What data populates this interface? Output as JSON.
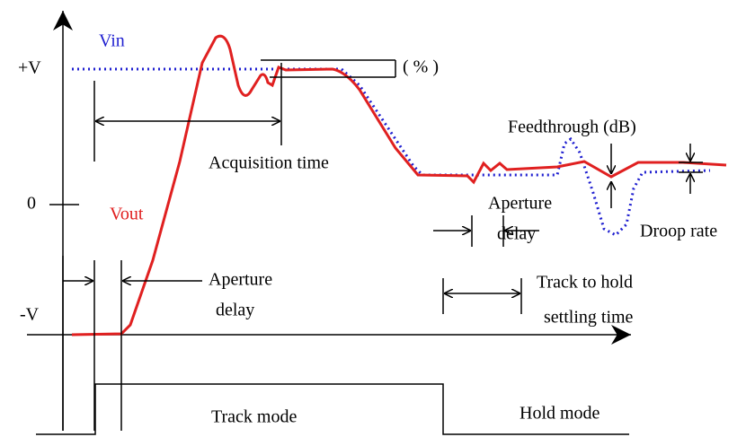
{
  "axis_labels": {
    "top": "+V",
    "zero": "0",
    "bottom": "-V"
  },
  "signals": {
    "input": "Vin",
    "output": "Vout"
  },
  "annotations": {
    "overshoot": "( % )",
    "feedthrough": "Feedthrough (dB)",
    "acquisition": "Acquisition time",
    "aperture_left": [
      "Aperture",
      "delay"
    ],
    "aperture_right": [
      "Aperture",
      "delay"
    ],
    "droop": "Droop rate",
    "settling": [
      "Track to hold",
      "settling time"
    ]
  },
  "modes": {
    "track": "Track mode",
    "hold": "Hold mode"
  }
}
